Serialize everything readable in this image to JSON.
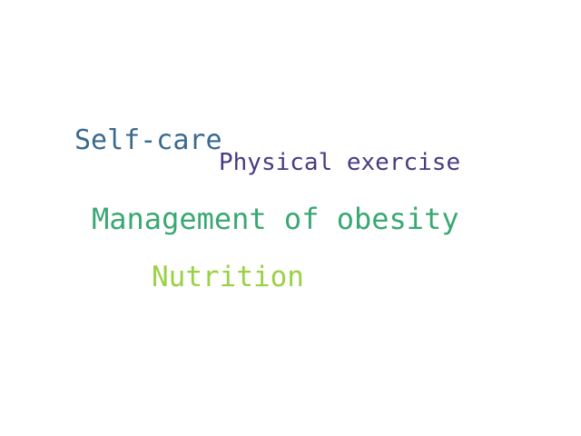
{
  "word_cloud": {
    "words": [
      {
        "text": "Self-care",
        "color": "#3b6a8f"
      },
      {
        "text": "Physical exercise",
        "color": "#4a3a80"
      },
      {
        "text": "Management of obesity",
        "color": "#3aa873"
      },
      {
        "text": "Nutrition",
        "color": "#9bd145"
      }
    ]
  }
}
